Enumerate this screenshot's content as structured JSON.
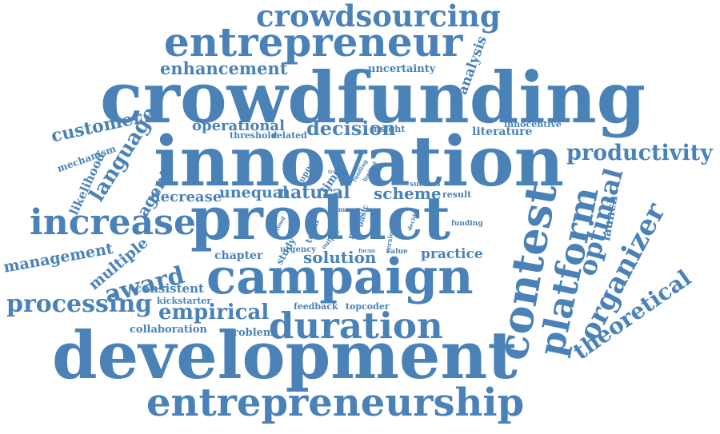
{
  "word_color": "#4a82b8",
  "background": "#ffffff",
  "words": [
    "crowdsourcing",
    "entrepreneur",
    "enhancement",
    "uncertainty",
    "analysis",
    "crowdfunding",
    "customer",
    "mechanism",
    "operational",
    "threshold",
    "related",
    "decision",
    "insight",
    "literature",
    "innocentive",
    "language",
    "likelihood",
    "innovation",
    "productivity",
    "support",
    "time",
    "trade",
    "funding",
    "limited",
    "effort",
    "agent",
    "decrease",
    "unequal",
    "natural",
    "scheme",
    "success",
    "result",
    "increase",
    "management",
    "multiple",
    "award",
    "product",
    "contest",
    "platform",
    "optimal",
    "launch",
    "organizer",
    "crowd",
    "team",
    "study",
    "urgency",
    "output",
    "basic",
    "model",
    "game",
    "version",
    "decide",
    "focus",
    "value",
    "chapter",
    "solution",
    "practice",
    "theoretical",
    "campaign",
    "consistent",
    "kickstarter",
    "processing",
    "empirical",
    "feedback",
    "topcoder",
    "collaboration",
    "problem",
    "duration",
    "development",
    "entrepreneurship"
  ]
}
